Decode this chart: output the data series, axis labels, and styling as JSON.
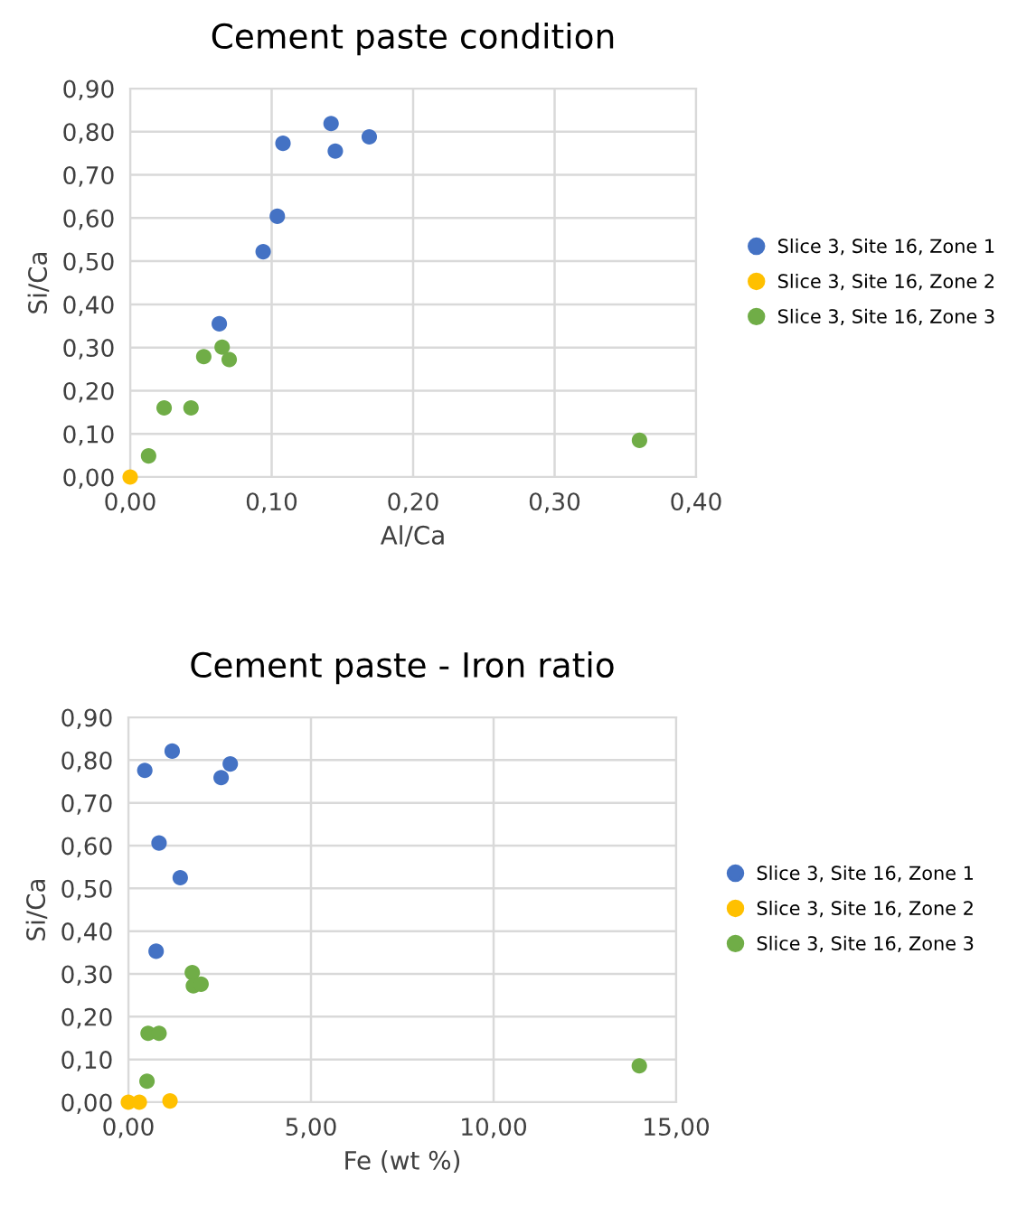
{
  "chart_data": [
    {
      "type": "scatter",
      "title": "Cement paste condition",
      "xlabel": "Al/Ca",
      "ylabel": "Si/Ca",
      "grid": true,
      "legend": "right",
      "marker": "circle",
      "xlim": [
        0,
        0.4
      ],
      "ylim": [
        0,
        0.9
      ],
      "xticks": [
        {
          "value": 0,
          "label": "0,00"
        },
        {
          "value": 0.1,
          "label": "0,10"
        },
        {
          "value": 0.2,
          "label": "0,20"
        },
        {
          "value": 0.3,
          "label": "0,30"
        },
        {
          "value": 0.4,
          "label": "0,40"
        }
      ],
      "yticks": [
        {
          "value": 0,
          "label": "0,00"
        },
        {
          "value": 0.1,
          "label": "0,10"
        },
        {
          "value": 0.2,
          "label": "0,20"
        },
        {
          "value": 0.3,
          "label": "0,30"
        },
        {
          "value": 0.4,
          "label": "0,40"
        },
        {
          "value": 0.5,
          "label": "0,50"
        },
        {
          "value": 0.6,
          "label": "0,60"
        },
        {
          "value": 0.7,
          "label": "0,70"
        },
        {
          "value": 0.8,
          "label": "0,80"
        },
        {
          "value": 0.9,
          "label": "0,90"
        }
      ],
      "series": [
        {
          "name": "Slice 3, Site 16, Zone 1",
          "color": "#4472c4",
          "x": [
            0.142,
            0.169,
            0.108,
            0.145,
            0.104,
            0.094,
            0.063
          ],
          "values": [
            0.819,
            0.788,
            0.773,
            0.755,
            0.604,
            0.522,
            0.355
          ]
        },
        {
          "name": "Slice 3, Site 16, Zone 2",
          "color": "#ffc000",
          "x": [
            0
          ],
          "values": [
            0
          ]
        },
        {
          "name": "Slice 3, Site 16, Zone 3",
          "color": "#70ad47",
          "x": [
            0.013,
            0.024,
            0.043,
            0.052,
            0.065,
            0.07,
            0.36
          ],
          "values": [
            0.049,
            0.16,
            0.16,
            0.279,
            0.301,
            0.272,
            0.085
          ]
        }
      ]
    },
    {
      "type": "scatter",
      "title": "Cement paste - Iron ratio",
      "xlabel": "Fe (wt %)",
      "ylabel": "Si/Ca",
      "grid": true,
      "legend": "right",
      "marker": "circle",
      "xlim": [
        0,
        15
      ],
      "ylim": [
        0,
        0.9
      ],
      "xticks": [
        {
          "value": 0,
          "label": "0,00"
        },
        {
          "value": 5,
          "label": "5,00"
        },
        {
          "value": 10,
          "label": "10,00"
        },
        {
          "value": 15,
          "label": "15,00"
        }
      ],
      "yticks": [
        {
          "value": 0,
          "label": "0,00"
        },
        {
          "value": 0.1,
          "label": "0,10"
        },
        {
          "value": 0.2,
          "label": "0,20"
        },
        {
          "value": 0.3,
          "label": "0,30"
        },
        {
          "value": 0.4,
          "label": "0,40"
        },
        {
          "value": 0.5,
          "label": "0,50"
        },
        {
          "value": 0.6,
          "label": "0,60"
        },
        {
          "value": 0.7,
          "label": "0,70"
        },
        {
          "value": 0.8,
          "label": "0,80"
        },
        {
          "value": 0.9,
          "label": "0,90"
        }
      ],
      "series": [
        {
          "name": "Slice 3, Site 16, Zone 1",
          "color": "#4472c4",
          "x": [
            1.2,
            2.79,
            0.45,
            2.54,
            0.84,
            1.42,
            0.76
          ],
          "values": [
            0.821,
            0.791,
            0.776,
            0.759,
            0.606,
            0.525,
            0.353
          ]
        },
        {
          "name": "Slice 3, Site 16, Zone 2",
          "color": "#ffc000",
          "x": [
            0,
            0.3,
            1.14
          ],
          "values": [
            0,
            0,
            0.003
          ]
        },
        {
          "name": "Slice 3, Site 16, Zone 3",
          "color": "#70ad47",
          "x": [
            0.51,
            0.54,
            0.84,
            1.75,
            1.78,
            1.99,
            13.99
          ],
          "values": [
            0.049,
            0.161,
            0.161,
            0.303,
            0.272,
            0.276,
            0.085
          ]
        }
      ]
    }
  ]
}
